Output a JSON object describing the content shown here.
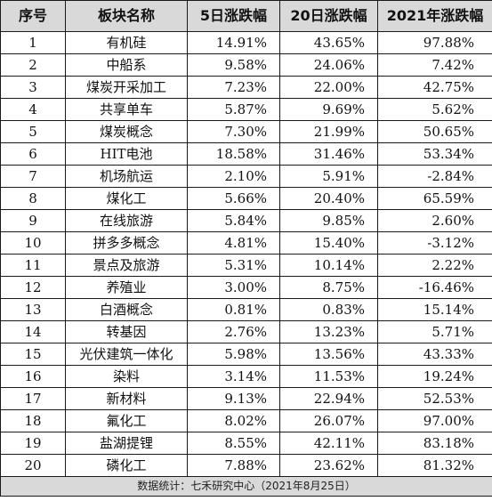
{
  "headers": [
    "序号",
    "板块名称",
    "5日涨跌幅",
    "20日涨跌幅",
    "2021年涨跌幅"
  ],
  "rows": [
    {
      "idx": "1",
      "name": "有机硅",
      "d5": "14.91%",
      "d20": "43.65%",
      "y2021": "97.88%"
    },
    {
      "idx": "2",
      "name": "中船系",
      "d5": "9.58%",
      "d20": "24.06%",
      "y2021": "7.42%"
    },
    {
      "idx": "3",
      "name": "煤炭开采加工",
      "d5": "7.23%",
      "d20": "22.00%",
      "y2021": "42.75%"
    },
    {
      "idx": "4",
      "name": "共享单车",
      "d5": "5.87%",
      "d20": "9.69%",
      "y2021": "5.62%"
    },
    {
      "idx": "5",
      "name": "煤炭概念",
      "d5": "7.30%",
      "d20": "21.99%",
      "y2021": "50.65%"
    },
    {
      "idx": "6",
      "name": "HIT电池",
      "d5": "18.58%",
      "d20": "31.46%",
      "y2021": "53.34%"
    },
    {
      "idx": "7",
      "name": "机场航运",
      "d5": "2.10%",
      "d20": "5.91%",
      "y2021": "-2.84%"
    },
    {
      "idx": "8",
      "name": "煤化工",
      "d5": "5.66%",
      "d20": "20.40%",
      "y2021": "65.59%"
    },
    {
      "idx": "9",
      "name": "在线旅游",
      "d5": "5.84%",
      "d20": "9.85%",
      "y2021": "2.60%"
    },
    {
      "idx": "10",
      "name": "拼多多概念",
      "d5": "4.81%",
      "d20": "15.40%",
      "y2021": "-3.12%"
    },
    {
      "idx": "11",
      "name": "景点及旅游",
      "d5": "5.31%",
      "d20": "10.14%",
      "y2021": "2.22%"
    },
    {
      "idx": "12",
      "name": "养殖业",
      "d5": "3.00%",
      "d20": "8.75%",
      "y2021": "-16.46%"
    },
    {
      "idx": "13",
      "name": "白酒概念",
      "d5": "0.81%",
      "d20": "0.83%",
      "y2021": "15.14%"
    },
    {
      "idx": "14",
      "name": "转基因",
      "d5": "2.76%",
      "d20": "13.23%",
      "y2021": "5.71%"
    },
    {
      "idx": "15",
      "name": "光伏建筑一体化",
      "d5": "5.98%",
      "d20": "13.56%",
      "y2021": "43.33%"
    },
    {
      "idx": "16",
      "name": "染料",
      "d5": "3.14%",
      "d20": "11.53%",
      "y2021": "19.24%"
    },
    {
      "idx": "17",
      "name": "新材料",
      "d5": "9.13%",
      "d20": "22.94%",
      "y2021": "52.53%"
    },
    {
      "idx": "18",
      "name": "氟化工",
      "d5": "8.02%",
      "d20": "26.07%",
      "y2021": "97.00%"
    },
    {
      "idx": "19",
      "name": "盐湖提锂",
      "d5": "8.55%",
      "d20": "42.11%",
      "y2021": "83.18%"
    },
    {
      "idx": "20",
      "name": "磷化工",
      "d5": "7.88%",
      "d20": "23.62%",
      "y2021": "81.32%"
    }
  ],
  "footer": "数据统计：七禾研究中心（2021年8月25日）"
}
